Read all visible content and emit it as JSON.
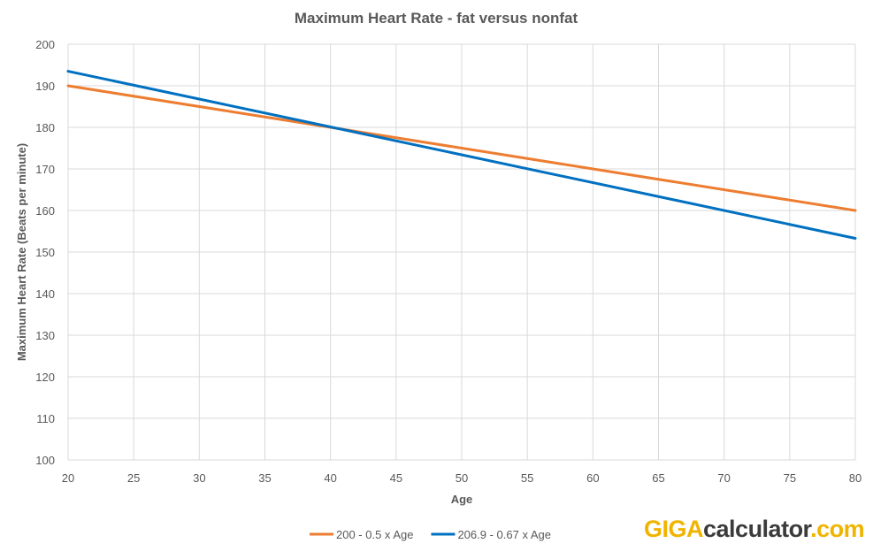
{
  "chart_data": {
    "type": "line",
    "title": "Maximum Heart Rate - fat versus nonfat",
    "xlabel": "Age",
    "ylabel": "Maximum Heart Rate (Beats per minute)",
    "xlim": [
      20,
      80
    ],
    "ylim": [
      100,
      200
    ],
    "xticks": [
      20,
      25,
      30,
      35,
      40,
      45,
      50,
      55,
      60,
      65,
      70,
      75,
      80
    ],
    "yticks": [
      100,
      110,
      120,
      130,
      140,
      150,
      160,
      170,
      180,
      190,
      200
    ],
    "grid": true,
    "legend_position": "bottom",
    "series": [
      {
        "name": "200 - 0.5 x Age",
        "color": "#ED7D31",
        "x": [
          20,
          80
        ],
        "y": [
          190,
          160
        ]
      },
      {
        "name": "206.9 - 0.67 x Age",
        "color": "#0070C0",
        "x": [
          20,
          80
        ],
        "y": [
          193.5,
          153.3
        ]
      }
    ]
  },
  "brand": {
    "part1": "GIGA",
    "part2": "calculator",
    "part3": ".com"
  }
}
